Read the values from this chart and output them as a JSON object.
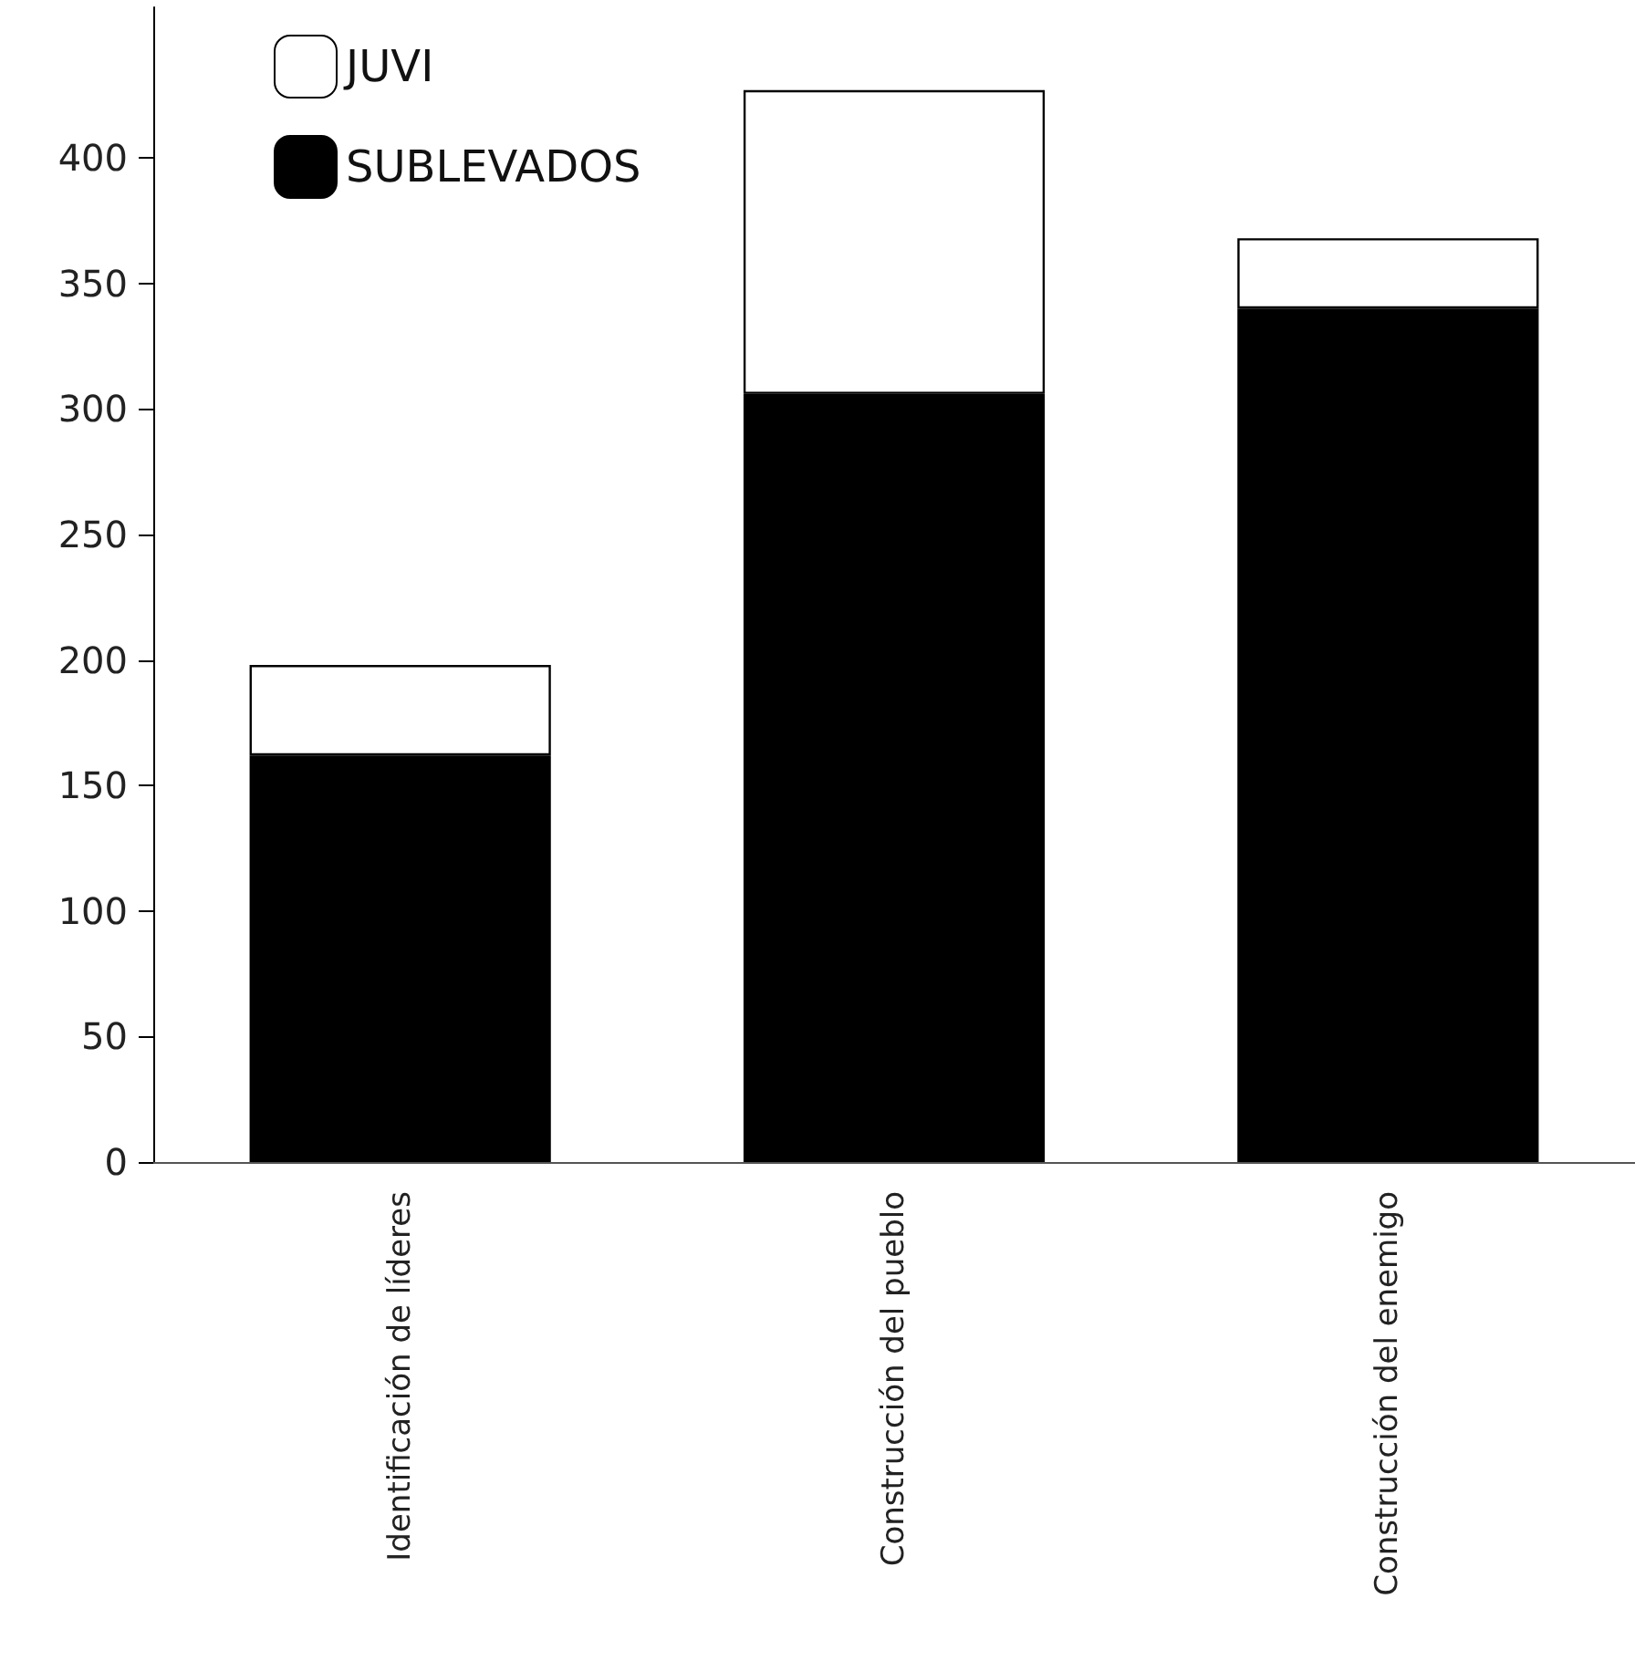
{
  "chart_data": {
    "type": "bar",
    "stacked": true,
    "categories": [
      "Identificación de líderes",
      "Construcción del pueblo",
      "Construcción del enemigo"
    ],
    "series": [
      {
        "name": "SUBLEVADOS",
        "color": "#000000",
        "values": [
          162,
          306,
          340
        ]
      },
      {
        "name": "JUVI",
        "color": "#ffffff",
        "values": [
          36,
          121,
          28
        ]
      }
    ],
    "ylim": [
      0,
      460
    ],
    "yticks": [
      0,
      50,
      100,
      150,
      200,
      250,
      300,
      350,
      400
    ],
    "grid": false,
    "legend": "top left"
  }
}
